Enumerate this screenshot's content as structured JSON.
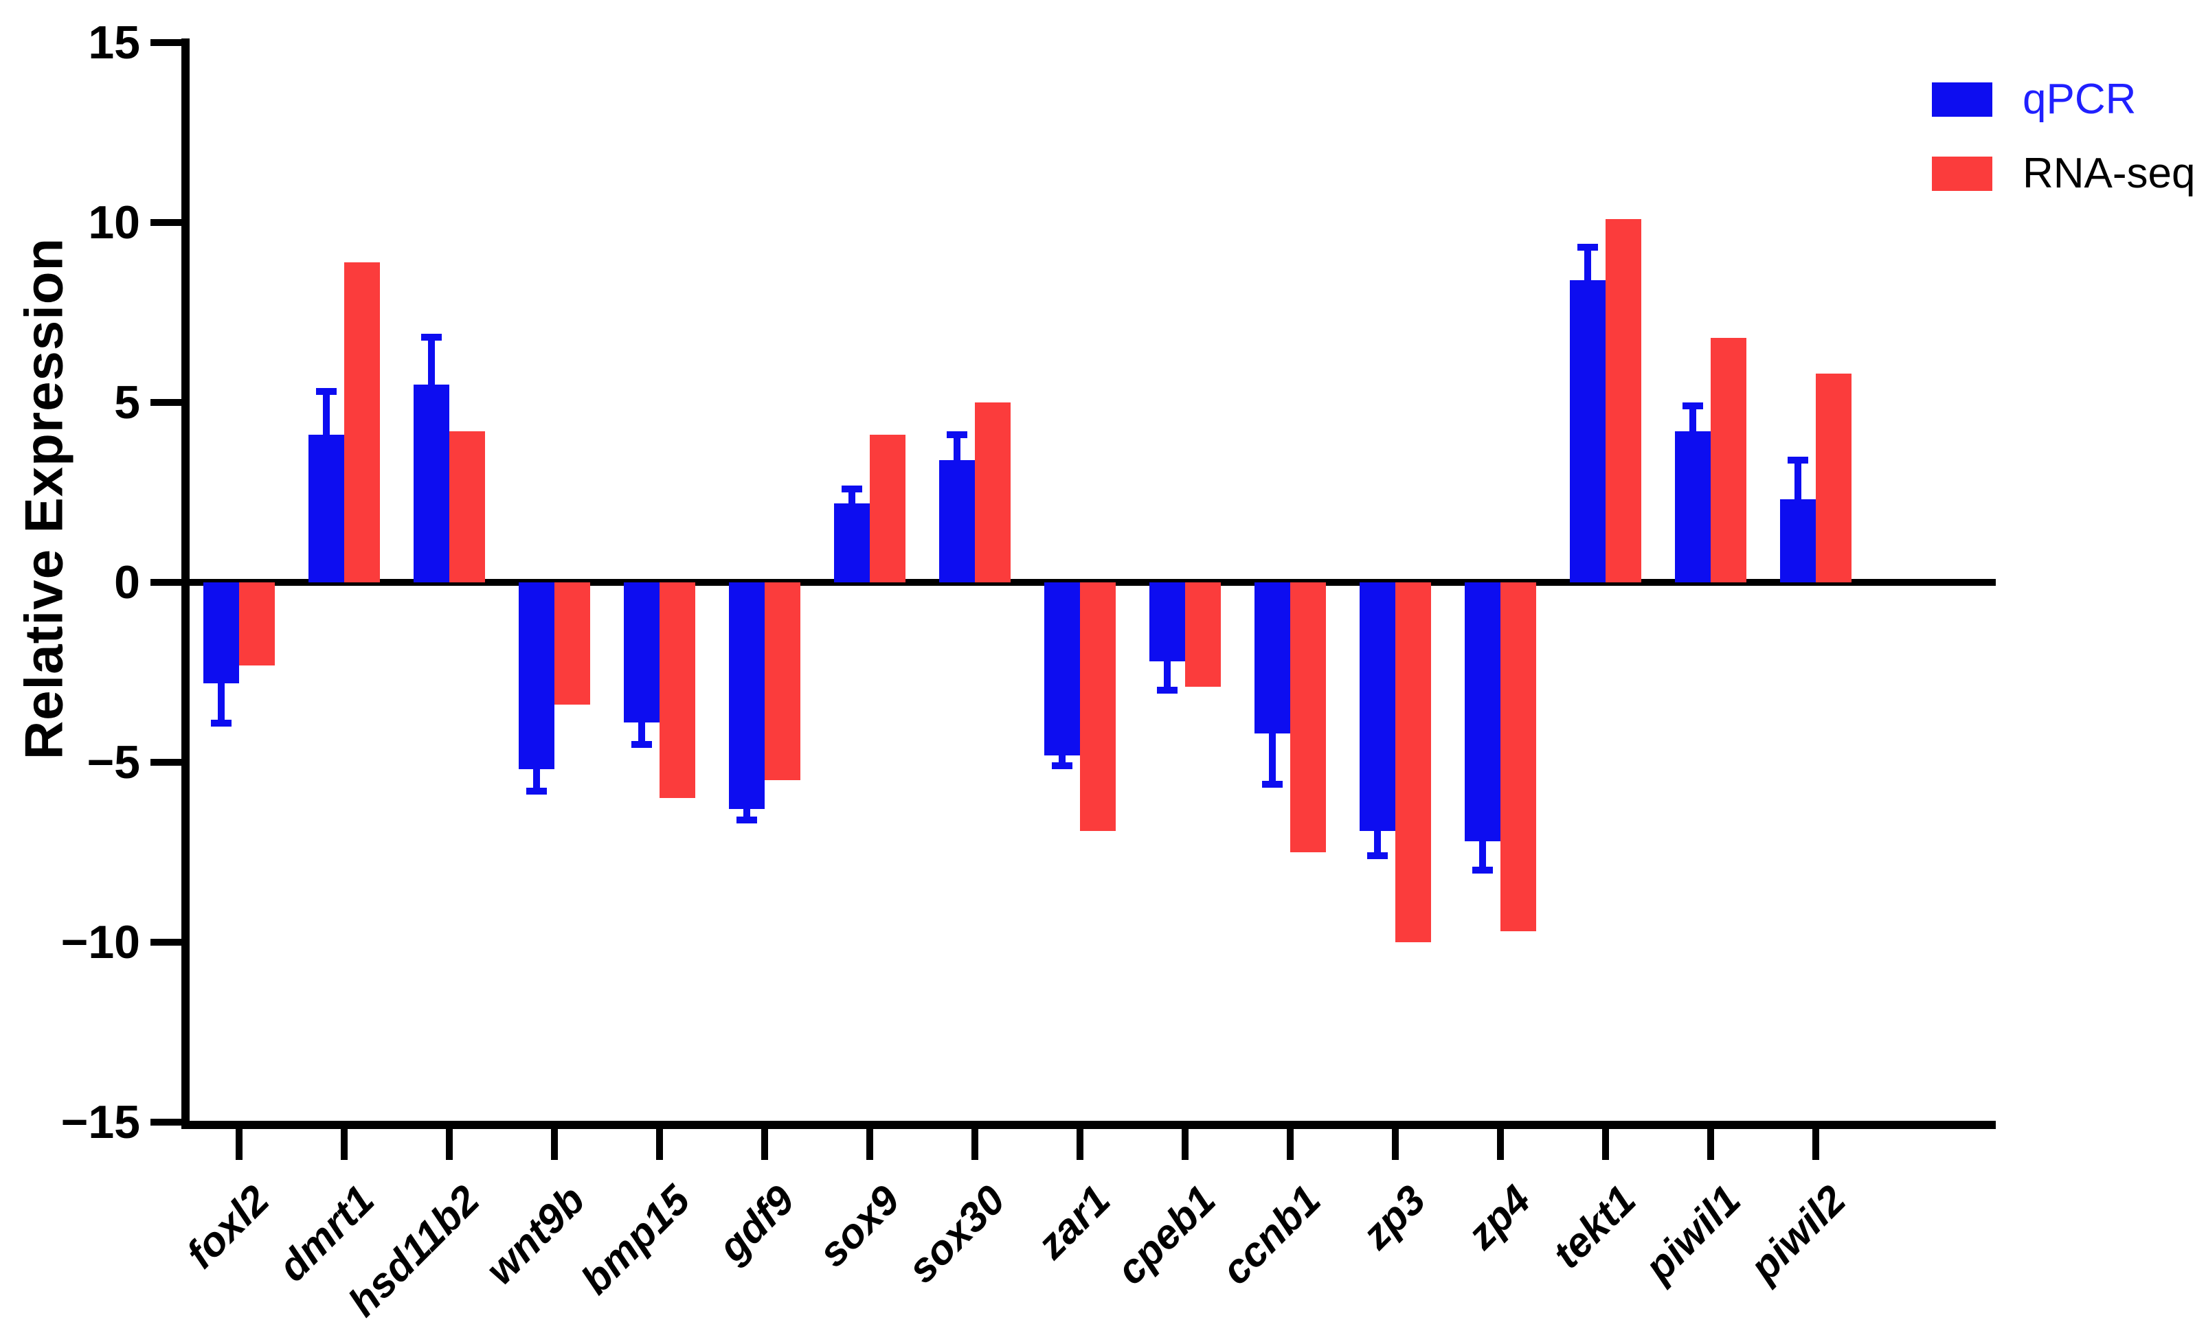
{
  "figure": {
    "background": "#ffffff"
  },
  "legend": {
    "items": [
      {
        "label": "qPCR",
        "swatch_color": "#0d0df0",
        "text_color": "#2020ff"
      },
      {
        "label": "RNA-seq",
        "swatch_color": "#fb3c3c",
        "text_color": "#000000"
      }
    ]
  },
  "chart_data": {
    "type": "bar",
    "title": "",
    "xlabel": "",
    "ylabel": "Relative Expression",
    "ylim": [
      -15,
      15
    ],
    "yticks": [
      15,
      10,
      5,
      0,
      -5,
      -10,
      -15
    ],
    "grid": false,
    "legend_position": "top-right",
    "categories": [
      "foxl2",
      "dmrt1",
      "hsd11b2",
      "wnt9b",
      "bmp15",
      "gdf9",
      "sox9",
      "sox30",
      "zar1",
      "cpeb1",
      "ccnb1",
      "zp3",
      "zp4",
      "tekt1",
      "piwil1",
      "piwil2"
    ],
    "series": [
      {
        "name": "qPCR",
        "color": "#0d0df0",
        "values": [
          -2.8,
          4.1,
          5.5,
          -5.2,
          -3.9,
          -6.3,
          2.2,
          3.4,
          -4.8,
          -2.2,
          -4.2,
          -6.9,
          -7.2,
          8.4,
          4.2,
          2.3
        ],
        "errors": [
          1.2,
          1.3,
          1.4,
          0.7,
          0.7,
          0.4,
          0.5,
          0.8,
          0.4,
          0.9,
          1.5,
          0.8,
          0.9,
          1.0,
          0.8,
          1.2
        ]
      },
      {
        "name": "RNA-seq",
        "color": "#fb3c3c",
        "values": [
          -2.3,
          8.9,
          4.2,
          -3.4,
          -6.0,
          -5.5,
          4.1,
          5.0,
          -6.9,
          -2.9,
          -7.5,
          -10.0,
          -9.7,
          10.1,
          6.8,
          5.8
        ]
      }
    ]
  }
}
